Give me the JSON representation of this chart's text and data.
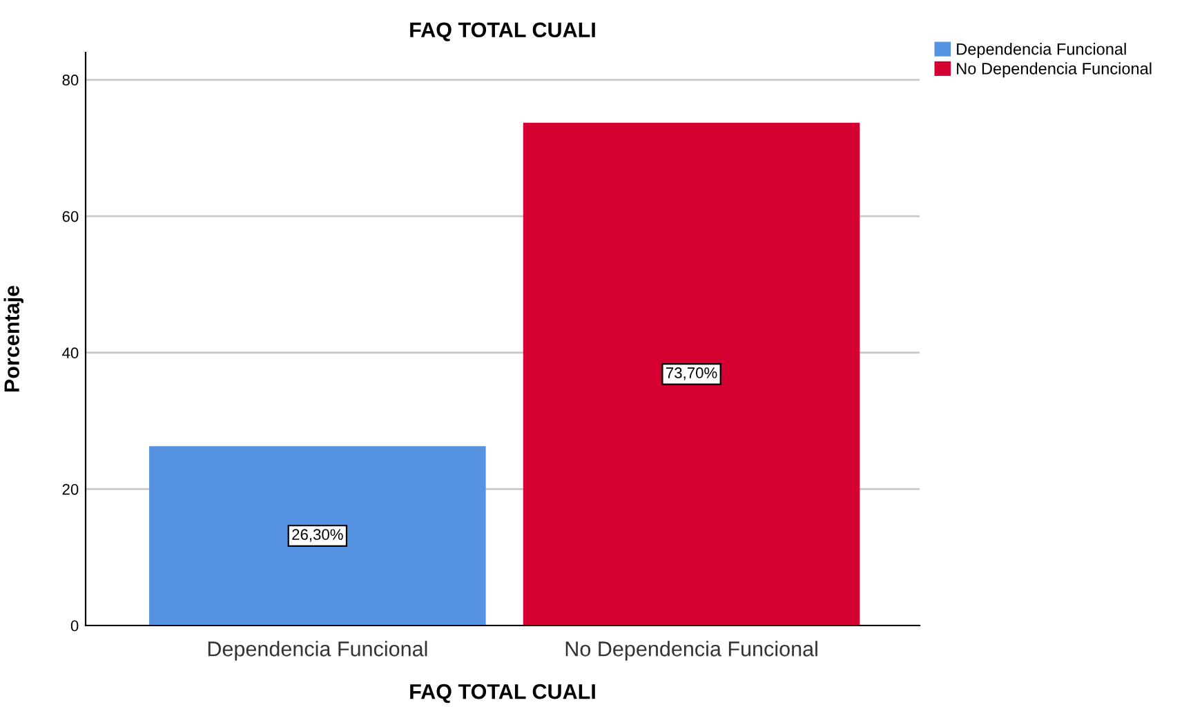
{
  "chart_data": {
    "type": "bar",
    "title": "FAQ TOTAL CUALI",
    "xlabel": "FAQ TOTAL CUALI",
    "ylabel": "Porcentaje",
    "categories": [
      "Dependencia Funcional",
      "No Dependencia Funcional"
    ],
    "series": [
      {
        "name": "Dependencia Funcional",
        "color": "#5592e2",
        "values": [
          26.3,
          null
        ],
        "value_labels": [
          "26,30%",
          null
        ]
      },
      {
        "name": "No Dependencia Funcional",
        "color": "#d50032",
        "values": [
          null,
          73.7
        ],
        "value_labels": [
          null,
          "73,70%"
        ]
      }
    ],
    "ylim": [
      0,
      84
    ],
    "yticks": [
      0,
      20,
      40,
      60,
      80
    ],
    "grid": "y",
    "legend": "top right"
  }
}
